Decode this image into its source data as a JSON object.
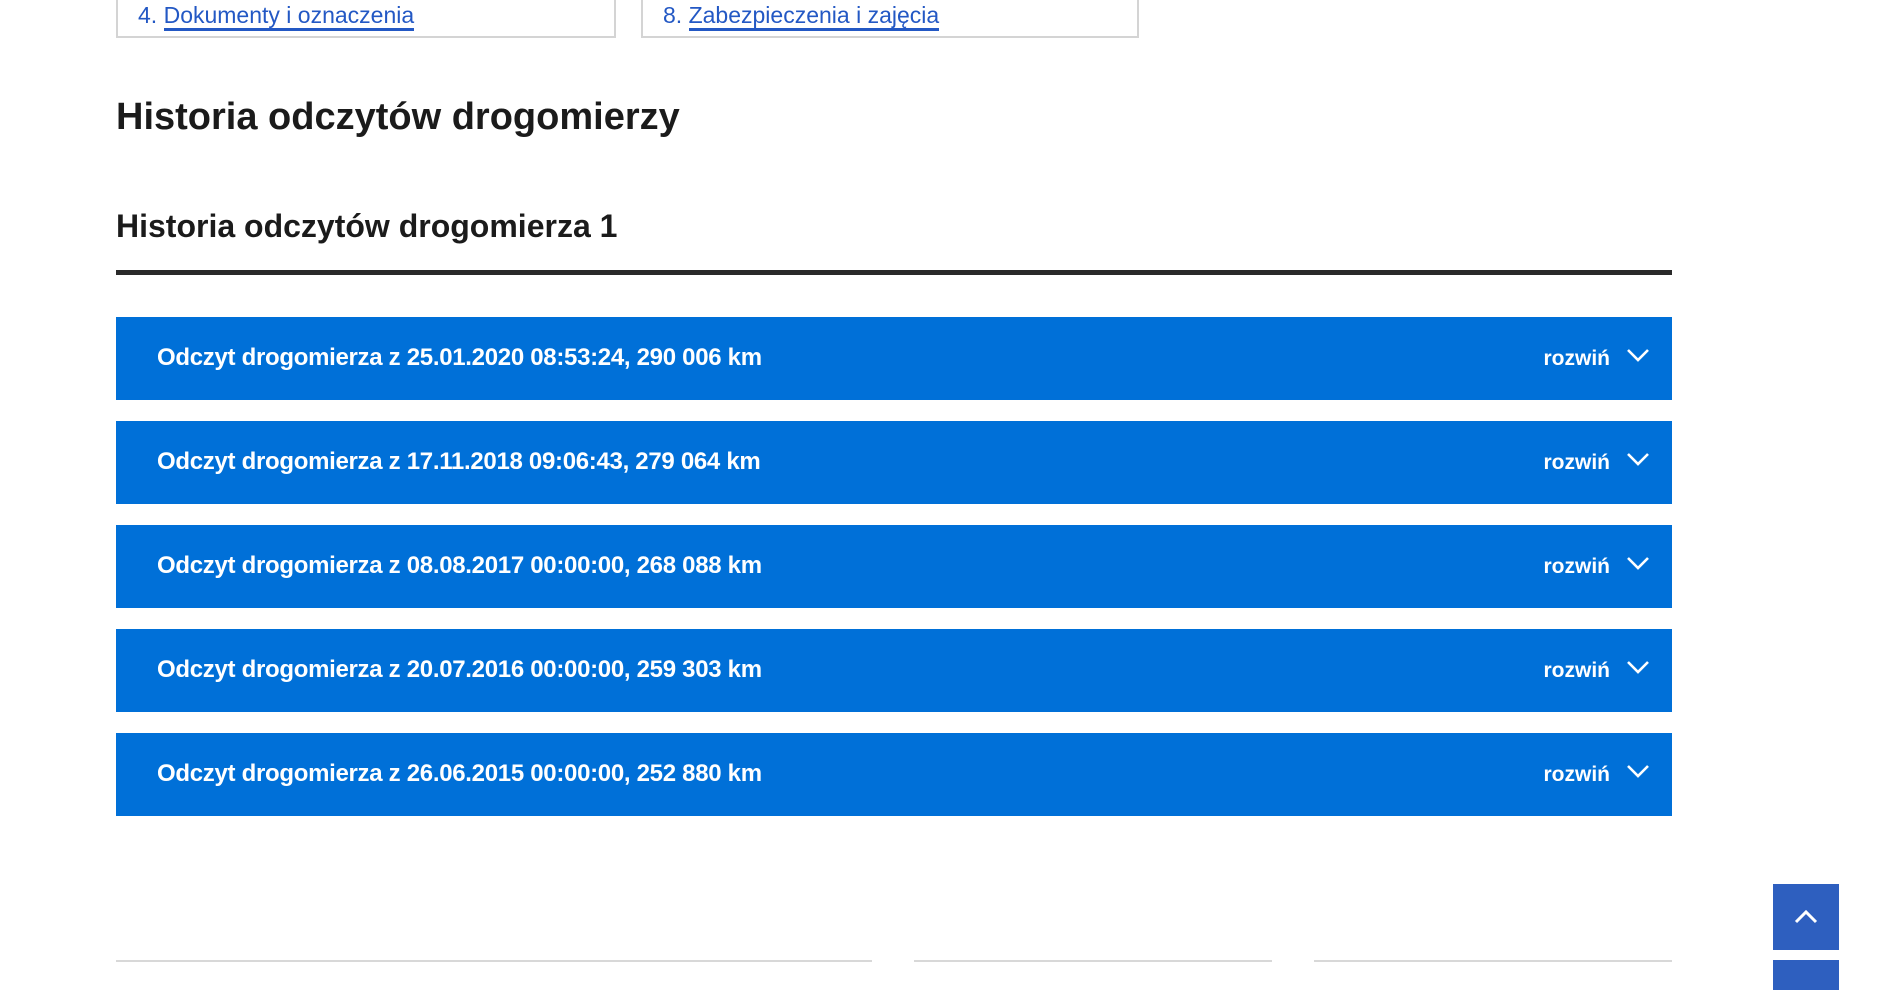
{
  "toc_cards": [
    {
      "label": "4. ",
      "link": "Dokumenty i oznaczenia"
    },
    {
      "label": "8. ",
      "link": "Zabezpieczenia i zajęcia"
    }
  ],
  "section_title": "Historia odczytów drogomierzy",
  "subsection_title": "Historia odczytów drogomierza 1",
  "readings": [
    {
      "title": "Odczyt drogomierza z 25.01.2020 08:53:24, 290 006 km",
      "toggle": "rozwiń"
    },
    {
      "title": "Odczyt drogomierza z 17.11.2018 09:06:43, 279 064 km",
      "toggle": "rozwiń"
    },
    {
      "title": "Odczyt drogomierza z 08.08.2017 00:00:00, 268 088 km",
      "toggle": "rozwiń"
    },
    {
      "title": "Odczyt drogomierza z 20.07.2016 00:00:00, 259 303 km",
      "toggle": "rozwiń"
    },
    {
      "title": "Odczyt drogomierza z 26.06.2015 00:00:00, 252 880 km",
      "toggle": "rozwiń"
    }
  ],
  "colors": {
    "accordion": "#0070d8",
    "back_to_top": "#2e5fbf",
    "link": "#2358c4"
  },
  "icons": {
    "accordion": "chevron-down-icon",
    "back_to_top": "chevron-up-icon"
  }
}
